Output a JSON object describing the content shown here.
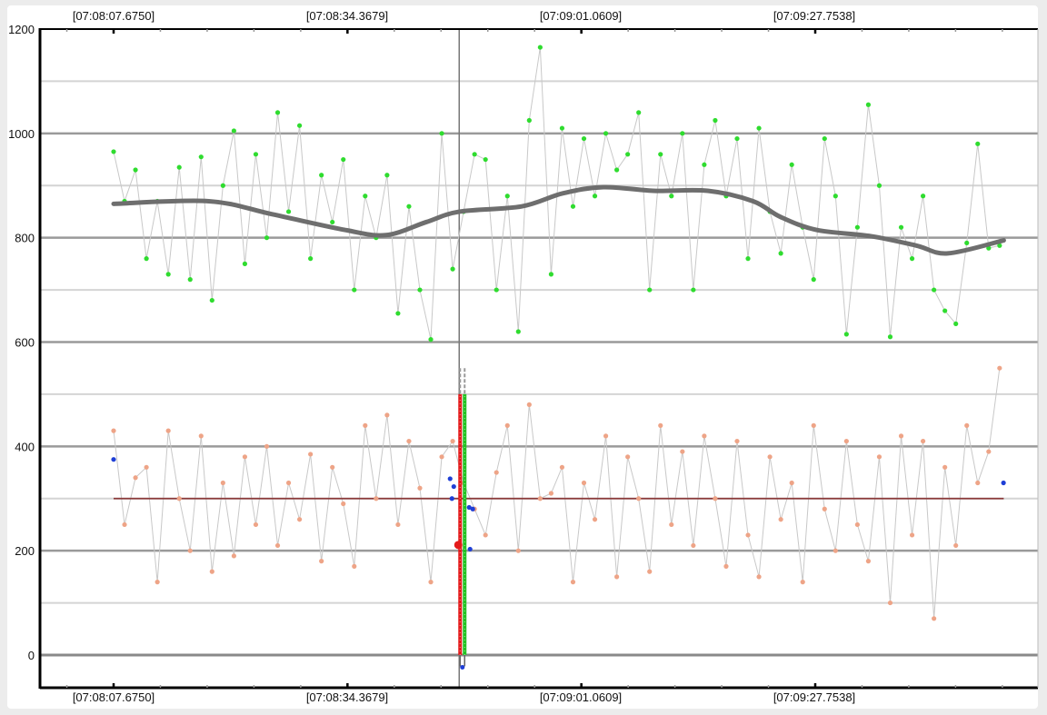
{
  "chart_data": {
    "type": "scatter",
    "title": "",
    "xlabel": "",
    "ylabel": "",
    "ylim": [
      -60,
      1200
    ],
    "xlim": [
      "07:08:00.000",
      "07:09:53.000"
    ],
    "grid": true,
    "y_ticks": [
      "0",
      "200",
      "400",
      "600",
      "800",
      "1000",
      "1200"
    ],
    "x_ticks": [
      "[07:08:07.6750]",
      "[07:08:34.3679]",
      "[07:09:01.0609]",
      "[07:09:27.7538]"
    ],
    "x_tick_times": [
      "07:08:07.675",
      "07:08:34.3679",
      "07:09:01.0609",
      "07:09:27.7538"
    ],
    "x": [
      "07:08:07.675",
      "07:08:08.925",
      "07:08:10.175",
      "07:08:11.425",
      "07:08:12.675",
      "07:08:13.925",
      "07:08:15.175",
      "07:08:16.425",
      "07:08:17.675",
      "07:08:18.925",
      "07:08:20.175",
      "07:08:21.425",
      "07:08:22.675",
      "07:08:23.925",
      "07:08:25.175",
      "07:08:26.425",
      "07:08:27.675",
      "07:08:28.925",
      "07:08:30.175",
      "07:08:31.425",
      "07:08:32.675",
      "07:08:33.925",
      "07:08:35.175",
      "07:08:36.425",
      "07:08:37.675",
      "07:08:38.925",
      "07:08:40.175",
      "07:08:41.425",
      "07:08:42.675",
      "07:08:43.925",
      "07:08:45.175",
      "07:08:46.425",
      "07:08:47.675",
      "07:08:48.925",
      "07:08:50.175",
      "07:08:51.425",
      "07:08:52.675",
      "07:08:53.925",
      "07:08:55.175",
      "07:08:56.425",
      "07:08:57.675",
      "07:08:58.925",
      "07:09:00.175",
      "07:09:01.425",
      "07:09:02.675",
      "07:09:03.925",
      "07:09:05.175",
      "07:09:06.425",
      "07:09:07.675",
      "07:09:08.925",
      "07:09:10.175",
      "07:09:11.425",
      "07:09:12.675",
      "07:09:13.925",
      "07:09:15.175",
      "07:09:16.425",
      "07:09:17.675",
      "07:09:18.925",
      "07:09:20.175",
      "07:09:21.425",
      "07:09:22.675",
      "07:09:23.925",
      "07:09:25.175",
      "07:09:26.425",
      "07:09:27.675",
      "07:09:28.925",
      "07:09:30.175",
      "07:09:31.425",
      "07:09:32.675",
      "07:09:33.925",
      "07:09:35.175",
      "07:09:36.425",
      "07:09:37.675",
      "07:09:38.925",
      "07:09:40.175",
      "07:09:41.425",
      "07:09:42.675",
      "07:09:43.925",
      "07:09:45.175",
      "07:09:46.425",
      "07:09:47.675",
      "07:09:48.925"
    ],
    "series": [
      {
        "color": "#2fdc2f",
        "line_color": "#c8c8c8",
        "values": [
          965,
          870,
          930,
          760,
          870,
          730,
          935,
          720,
          955,
          680,
          900,
          1005,
          750,
          960,
          800,
          1040,
          850,
          1015,
          760,
          920,
          830,
          950,
          700,
          880,
          800,
          920,
          655,
          860,
          700,
          605,
          1000,
          740,
          850,
          960,
          950,
          700,
          880,
          620,
          1025,
          1165,
          730,
          1010,
          860,
          990,
          880,
          1000,
          930,
          960,
          1040,
          700,
          960,
          880,
          1000,
          700,
          940,
          1025,
          880,
          990,
          760,
          1010,
          850,
          770,
          940,
          820,
          720,
          990,
          880,
          615,
          820,
          1055,
          900,
          610,
          820,
          760,
          880,
          700,
          660,
          635,
          790,
          980,
          780,
          785
        ]
      },
      {
        "color": "#eea487",
        "line_color": "#c8c8c8",
        "values": [
          430,
          250,
          340,
          360,
          140,
          430,
          300,
          200,
          420,
          160,
          330,
          190,
          380,
          250,
          400,
          210,
          330,
          260,
          385,
          180,
          360,
          290,
          170,
          440,
          300,
          460,
          250,
          410,
          320,
          140,
          380,
          410,
          330,
          280,
          230,
          350,
          440,
          200,
          480,
          300,
          310,
          360,
          140,
          330,
          260,
          420,
          150,
          380,
          300,
          160,
          440,
          250,
          390,
          210,
          420,
          300,
          170,
          410,
          230,
          150,
          380,
          260,
          330,
          140,
          440,
          280,
          200,
          410,
          250,
          180,
          380,
          100,
          420,
          230,
          410,
          70,
          360,
          210,
          440,
          330,
          390,
          550
        ]
      }
    ],
    "trend": {
      "color": "#6e6e6e",
      "x": [
        "07:08:07.675",
        "07:08:18.56",
        "07:08:25.8",
        "07:08:34.1",
        "07:08:38.8",
        "07:08:43.4",
        "07:08:47.2",
        "07:08:54.3",
        "07:08:59.0",
        "07:09:03.65",
        "07:09:09.35",
        "07:09:15.57",
        "07:09:20.76",
        "07:09:23.87",
        "07:09:28.0",
        "07:09:34.2",
        "07:09:39.4",
        "07:09:43.0",
        "07:09:49.4"
      ],
      "values": [
        865,
        870,
        845,
        815,
        805,
        830,
        850,
        860,
        885,
        897,
        890,
        890,
        870,
        840,
        815,
        803,
        785,
        770,
        795
      ]
    },
    "mean_line": {
      "value": 300,
      "color": "#8b3a3a",
      "x": [
        "07:08:07.675",
        "07:09:49.4"
      ]
    },
    "markers": {
      "color": "#1f3fd6",
      "x": [
        "07:08:07.675",
        "07:08:46.13",
        "07:08:46.34",
        "07:08:46.55",
        "07:08:48.31",
        "07:08:48.41",
        "07:08:48.72",
        "07:09:49.37"
      ],
      "values": [
        375,
        338,
        300,
        323,
        283,
        203,
        280,
        330
      ]
    },
    "cursor": {
      "time": "07:08:47.17",
      "color": "#777777",
      "highlight": {
        "value": 211,
        "color": "#e41a1a"
      },
      "bars": [
        {
          "color": "#e41a1a",
          "from": 0,
          "to": 500
        },
        {
          "color": "#22c222",
          "from": 0,
          "to": 500
        }
      ],
      "dip": -20
    }
  }
}
